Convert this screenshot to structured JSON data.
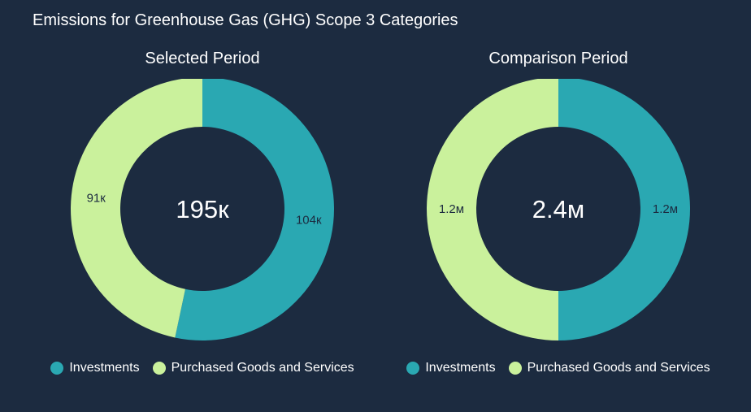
{
  "title": "Emissions for Greenhouse Gas (GHG) Scope 3 Categories",
  "colors": {
    "background": "#1c2b40",
    "investments": "#2aa8b2",
    "purchased_goods": "#caf19c"
  },
  "legend": [
    "Investments",
    "Purchased Goods and Services"
  ],
  "chart_data": [
    {
      "type": "pie",
      "title": "Selected Period",
      "total_label": "195к",
      "categories": [
        "Investments",
        "Purchased Goods and Services"
      ],
      "values": [
        104000,
        91000
      ],
      "data_labels": [
        "104к",
        "91к"
      ]
    },
    {
      "type": "pie",
      "title": "Comparison Period",
      "total_label": "2.4м",
      "categories": [
        "Investments",
        "Purchased Goods and Services"
      ],
      "values": [
        1200000,
        1200000
      ],
      "data_labels": [
        "1.2м",
        "1.2м"
      ]
    }
  ]
}
